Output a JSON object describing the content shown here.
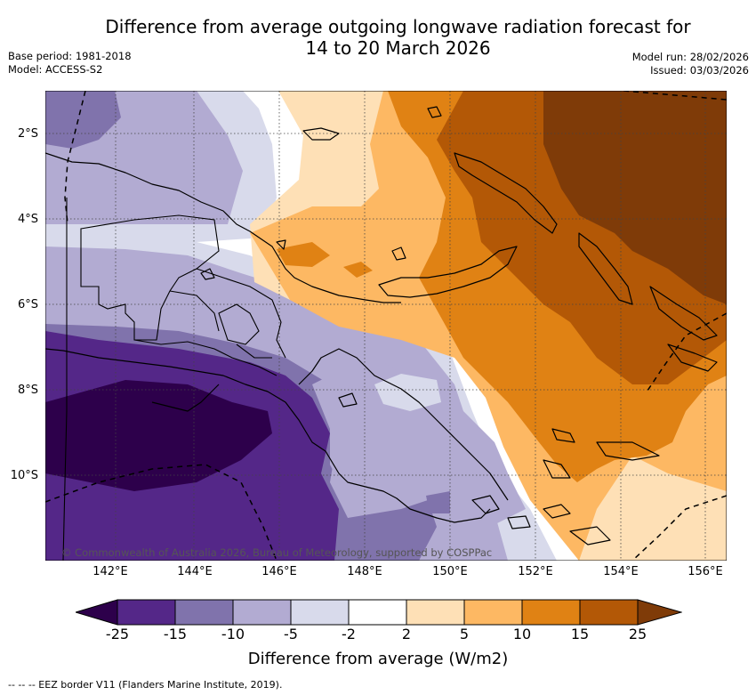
{
  "title_line1": "Difference from average outgoing longwave radiation forecast for",
  "title_line2": "14 to 20 March 2026",
  "base_period": "Base period: 1981-2018",
  "model": "Model: ACCESS-S2",
  "model_run": "Model run: 28/02/2026",
  "issued": "Issued: 03/03/2026",
  "lat_labels": [
    "2°S",
    "4°S",
    "6°S",
    "8°S",
    "10°S"
  ],
  "lon_labels": [
    "142°E",
    "144°E",
    "146°E",
    "148°E",
    "150°E",
    "152°E",
    "154°E",
    "156°E"
  ],
  "copyright": "© Commonwealth of Australia 2026, Bureau of Meteorology, supported by COSPPac",
  "colorbar": {
    "title": "Difference from average (W/m2)",
    "tick_labels": [
      "-25",
      "-15",
      "-10",
      "-5",
      "-2",
      "2",
      "5",
      "10",
      "15",
      "25"
    ],
    "colors": [
      "#2d004b",
      "#542788",
      "#8073ac",
      "#b2abd2",
      "#d8daeb",
      "#ffffff",
      "#fee0b6",
      "#fdb863",
      "#e08214",
      "#b35806",
      "#7f3b08"
    ]
  },
  "footer": "--  --  -- EEZ border V11 (Flanders Marine Institute, 2019)."
}
